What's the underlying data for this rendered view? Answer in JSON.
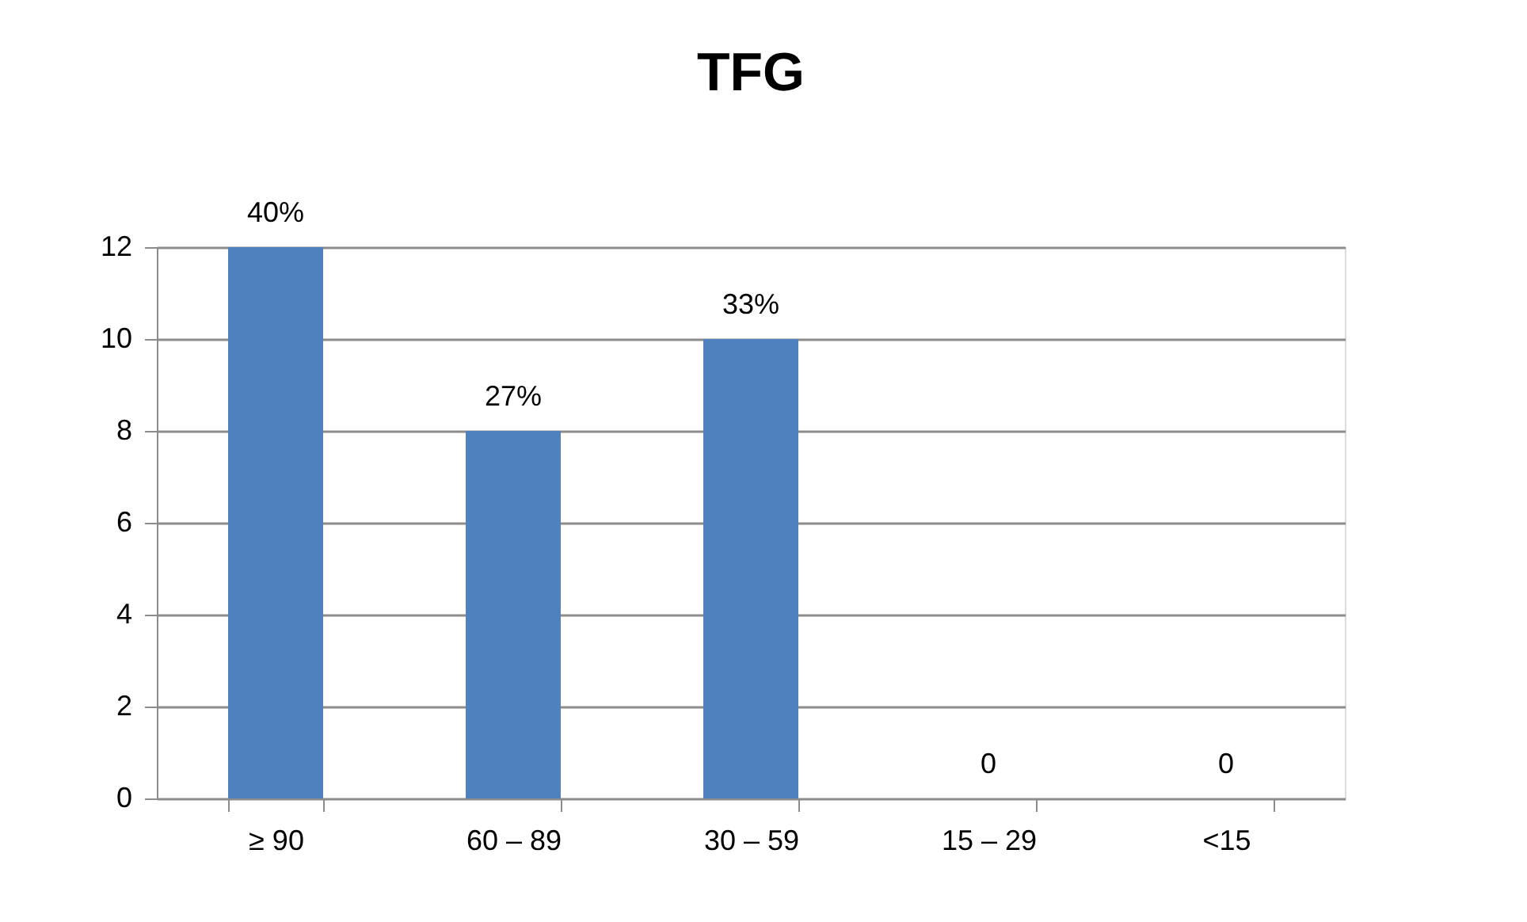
{
  "chart_data": {
    "type": "bar",
    "title": "TFG",
    "categories": [
      "≥ 90",
      "60 – 89",
      "30 – 59",
      "15 – 29",
      "<15"
    ],
    "values": [
      12,
      8,
      10,
      0,
      0
    ],
    "color": "#4f81bd",
    "annotations": [
      {
        "text": "40%",
        "x": "≥ 90",
        "y": 12
      },
      {
        "text": "27%",
        "x": "60 – 89",
        "y": 8
      },
      {
        "text": "33%",
        "x": "30 – 59",
        "y": 10
      },
      {
        "text": "0",
        "x": "15 – 29",
        "y": 0
      },
      {
        "text": "0",
        "x": "<15",
        "y": 0
      }
    ],
    "ylim": [
      0,
      12
    ],
    "yticks": [
      0,
      2,
      4,
      6,
      8,
      10,
      12
    ],
    "grid": "y"
  }
}
